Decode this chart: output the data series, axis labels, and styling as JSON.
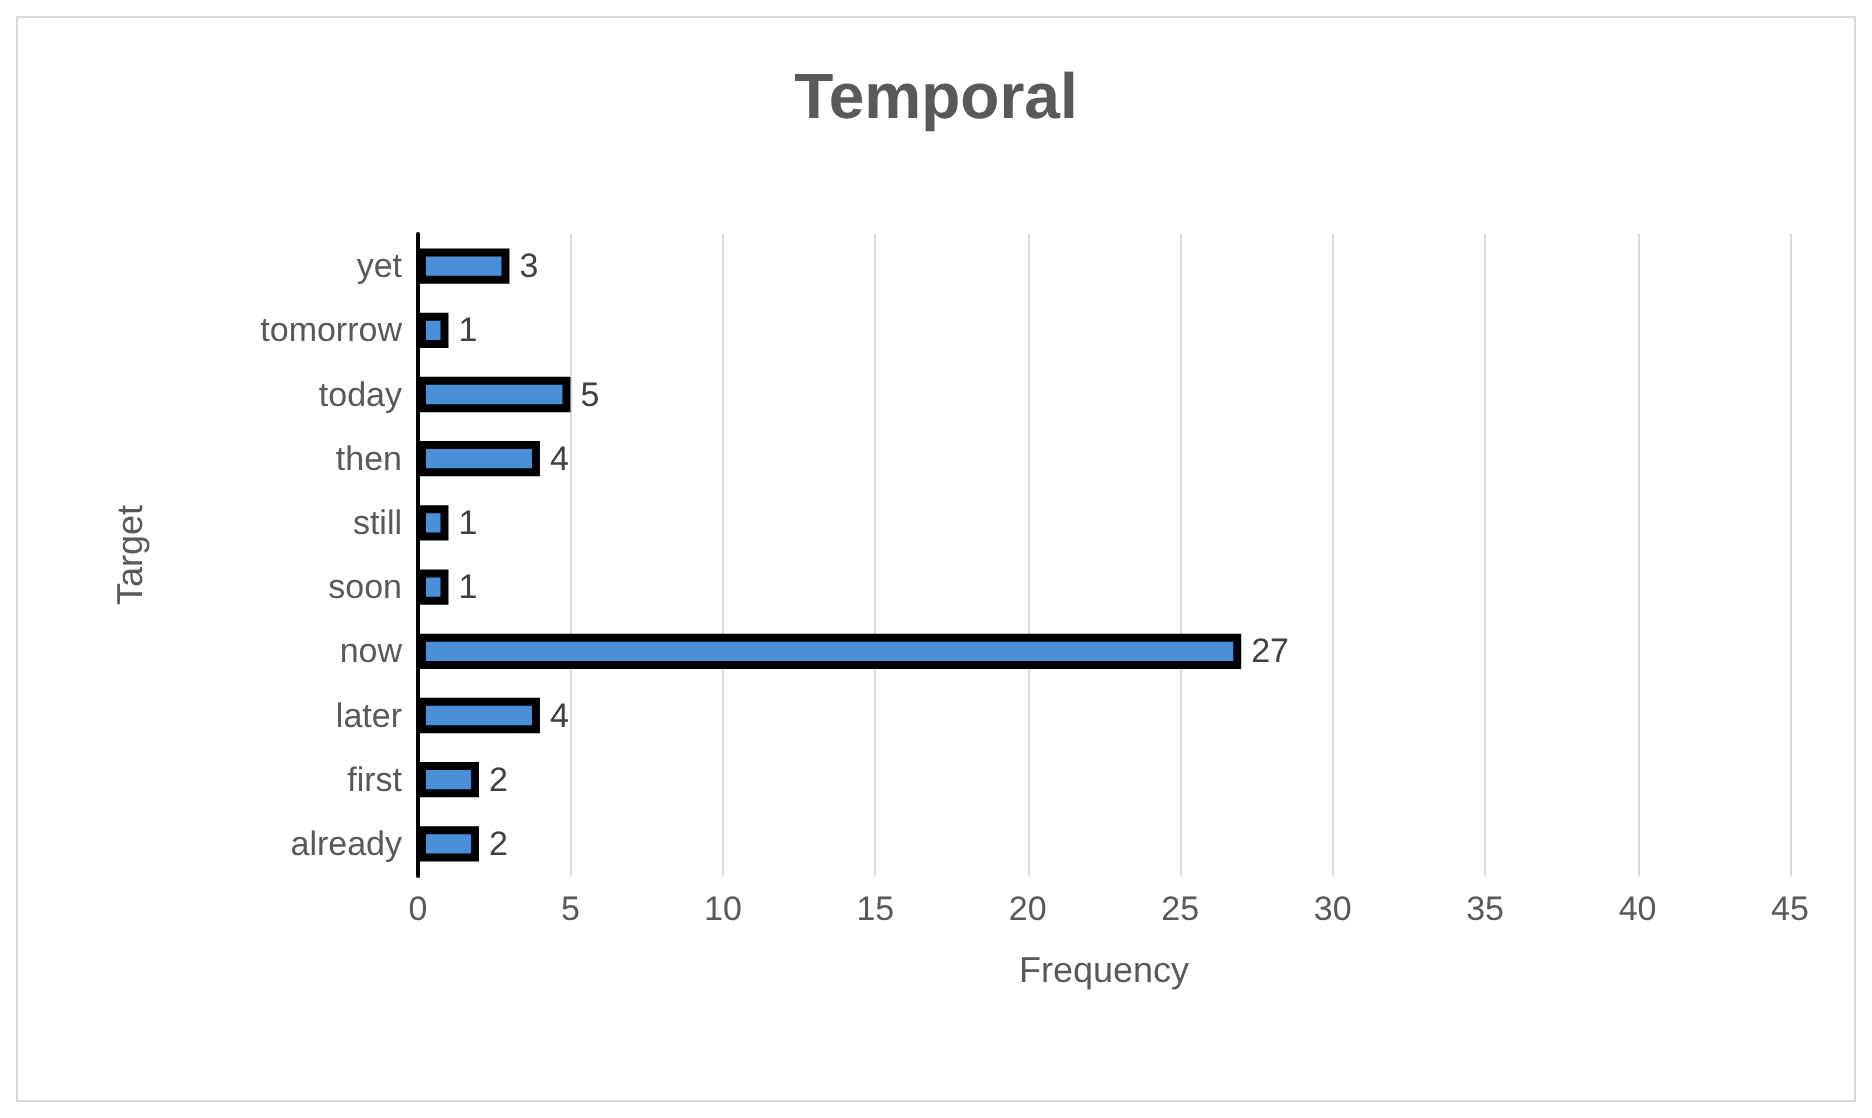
{
  "chart_data": {
    "type": "bar",
    "orientation": "horizontal",
    "title": "Temporal",
    "xlabel": "Frequency",
    "ylabel": "Target",
    "categories": [
      "yet",
      "tomorrow",
      "today",
      "then",
      "still",
      "soon",
      "now",
      "later",
      "first",
      "already"
    ],
    "values": [
      3,
      1,
      5,
      4,
      1,
      1,
      27,
      4,
      2,
      2
    ],
    "color": "#4a90d9",
    "xlim": [
      0,
      45
    ],
    "xticks": [
      0,
      5,
      10,
      15,
      20,
      25,
      30,
      35,
      40,
      45
    ],
    "grid": "x",
    "data_labels": true
  }
}
